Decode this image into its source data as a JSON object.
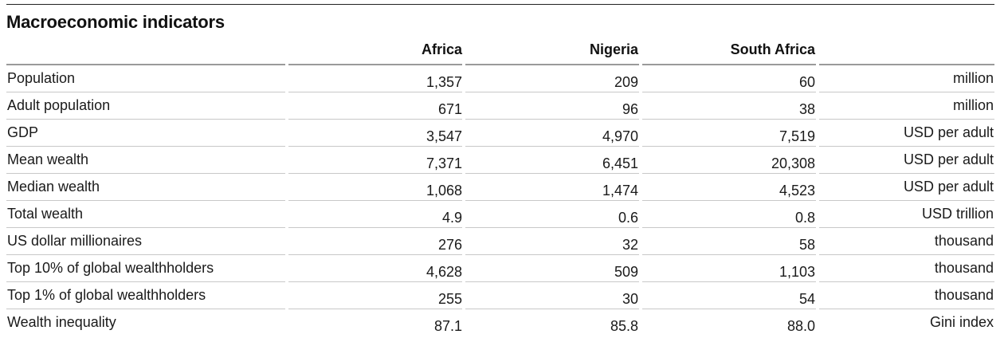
{
  "title": "Macroeconomic indicators",
  "columns": [
    "Africa",
    "Nigeria",
    "South Africa"
  ],
  "rows": [
    {
      "label": "Population",
      "values": [
        "1,357",
        "209",
        "60"
      ],
      "unit": "million"
    },
    {
      "label": "Adult population",
      "values": [
        "671",
        "96",
        "38"
      ],
      "unit": "million"
    },
    {
      "label": "GDP",
      "values": [
        "3,547",
        "4,970",
        "7,519"
      ],
      "unit": "USD per adult"
    },
    {
      "label": "Mean wealth",
      "values": [
        "7,371",
        "6,451",
        "20,308"
      ],
      "unit": "USD per adult"
    },
    {
      "label": "Median wealth",
      "values": [
        "1,068",
        "1,474",
        "4,523"
      ],
      "unit": "USD per adult"
    },
    {
      "label": "Total wealth",
      "values": [
        "4.9",
        "0.6",
        "0.8"
      ],
      "unit": "USD trillion"
    },
    {
      "label": "US dollar millionaires",
      "values": [
        "276",
        "32",
        "58"
      ],
      "unit": "thousand"
    },
    {
      "label": "Top 10% of global wealthholders",
      "values": [
        "4,628",
        "509",
        "1,103"
      ],
      "unit": "thousand"
    },
    {
      "label": "Top 1% of global wealthholders",
      "values": [
        "255",
        "30",
        "54"
      ],
      "unit": "thousand"
    },
    {
      "label": "Wealth inequality",
      "values": [
        "87.1",
        "85.8",
        "88.0"
      ],
      "unit": "Gini index"
    }
  ]
}
